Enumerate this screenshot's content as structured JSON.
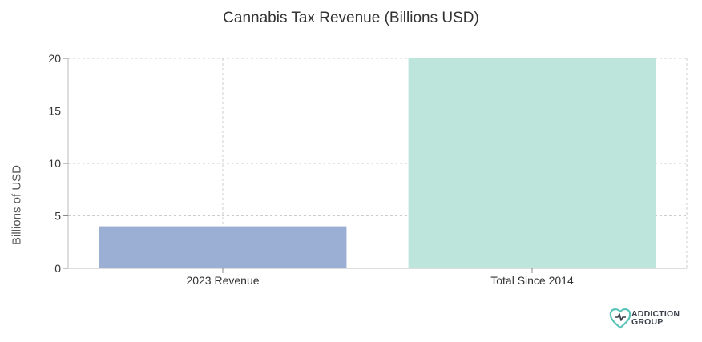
{
  "chart_data": {
    "type": "bar",
    "title": "Cannabis Tax Revenue (Billions USD)",
    "xlabel": "",
    "ylabel": "Billions of USD",
    "categories": [
      "2023 Revenue",
      "Total Since 2014"
    ],
    "values": [
      4,
      20
    ],
    "ylim": [
      0,
      20
    ],
    "yticks": [
      0,
      5,
      10,
      15,
      20
    ],
    "bar_colors": [
      "#9aafd3",
      "#bde5dc"
    ],
    "grid": true,
    "legend": "none"
  },
  "branding": {
    "logo_line1": "ADDICTION",
    "logo_line2": "GROUP",
    "logo_color": "#5bc4b8"
  }
}
